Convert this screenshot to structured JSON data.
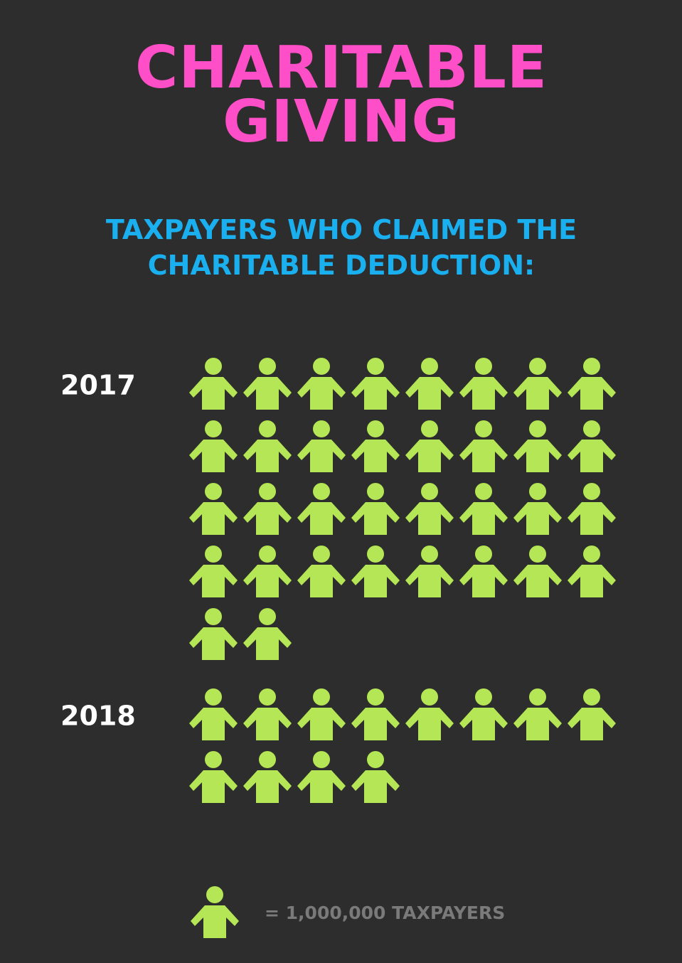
{
  "chart_data": {
    "type": "pictogram",
    "title": "CHARITABLE GIVING",
    "subtitle": "TAXPAYERS WHO CLAIMED THE CHARITABLE DEDUCTION:",
    "categories": [
      "2017",
      "2018"
    ],
    "values": [
      34,
      12
    ],
    "color": "#b5e655",
    "legend_label": "= 1,000,000 TAXPAYERS"
  }
}
